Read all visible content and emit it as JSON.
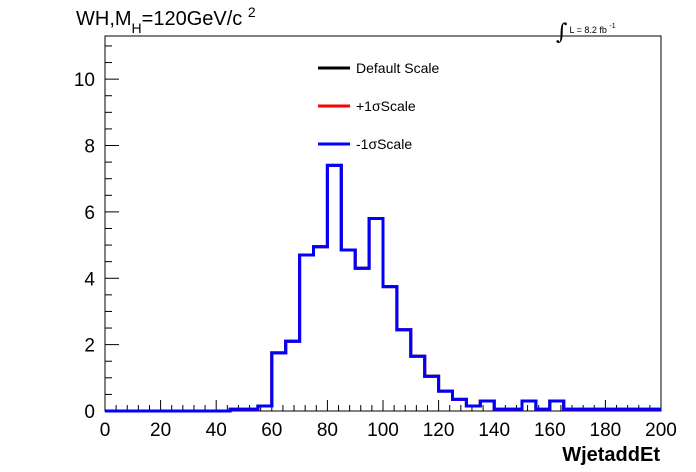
{
  "title": {
    "pre": "WH,M",
    "sub": "H",
    "mid": "=120GeV/c",
    "sup": "2"
  },
  "lumi": {
    "prefix": "L = 8.2 fb",
    "sup": "-1"
  },
  "chart_data": {
    "type": "line",
    "style": "step-histogram",
    "xlabel": "WjetaddEt",
    "ylabel": "",
    "xlim": [
      0,
      200
    ],
    "ylim": [
      0,
      11.3
    ],
    "x_ticks": [
      0,
      20,
      40,
      60,
      80,
      100,
      120,
      140,
      160,
      180,
      200
    ],
    "y_ticks": [
      0,
      2,
      4,
      6,
      8,
      10
    ],
    "grid": false,
    "legend_position": "top-center",
    "bin_edges": [
      0,
      5,
      10,
      15,
      20,
      25,
      30,
      35,
      40,
      45,
      50,
      55,
      60,
      65,
      70,
      75,
      80,
      85,
      90,
      95,
      100,
      105,
      110,
      115,
      120,
      125,
      130,
      135,
      140,
      145,
      150,
      155,
      160,
      165,
      170,
      175,
      180,
      185,
      190,
      195,
      200
    ],
    "series": [
      {
        "name": "Default Scale",
        "color": "#000000",
        "values": [
          0,
          0,
          0,
          0,
          0,
          0,
          0,
          0,
          0,
          0.05,
          0.05,
          0.15,
          1.75,
          2.1,
          4.7,
          4.95,
          7.4,
          4.85,
          4.3,
          5.8,
          3.75,
          2.45,
          1.65,
          1.05,
          0.6,
          0.35,
          0.15,
          0.3,
          0.05,
          0.05,
          0.3,
          0.05,
          0.3,
          0.05,
          0.05,
          0.05,
          0.05,
          0.05,
          0.05,
          0.05
        ]
      },
      {
        "name": "+1σScale",
        "color": "#ff0000",
        "values": [
          0,
          0,
          0,
          0,
          0,
          0,
          0,
          0,
          0,
          0.05,
          0.05,
          0.15,
          1.75,
          2.1,
          4.7,
          4.95,
          7.4,
          4.85,
          4.3,
          5.8,
          3.75,
          2.45,
          1.65,
          1.05,
          0.6,
          0.35,
          0.15,
          0.3,
          0.05,
          0.05,
          0.3,
          0.05,
          0.3,
          0.05,
          0.05,
          0.05,
          0.05,
          0.05,
          0.05,
          0.05
        ]
      },
      {
        "name": "-1σScale",
        "color": "#0000ff",
        "values": [
          0,
          0,
          0,
          0,
          0,
          0,
          0,
          0,
          0,
          0.05,
          0.05,
          0.15,
          1.75,
          2.1,
          4.7,
          4.95,
          7.4,
          4.85,
          4.3,
          5.8,
          3.75,
          2.45,
          1.65,
          1.05,
          0.6,
          0.35,
          0.15,
          0.3,
          0.05,
          0.05,
          0.3,
          0.05,
          0.3,
          0.05,
          0.05,
          0.05,
          0.05,
          0.05,
          0.05,
          0.05
        ]
      }
    ]
  }
}
